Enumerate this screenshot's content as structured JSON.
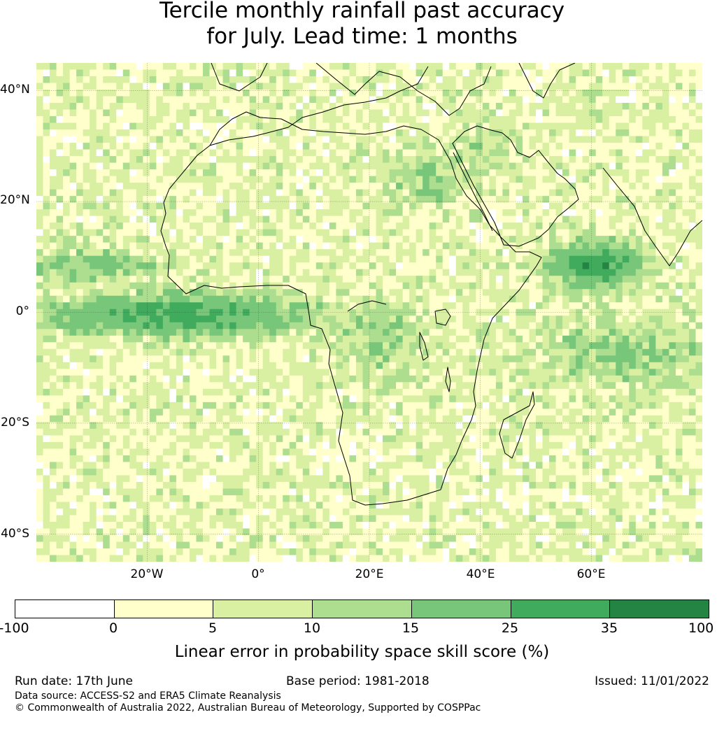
{
  "title": {
    "line1": "Tercile monthly rainfall past accuracy",
    "line2": "for July. Lead time: 1 months"
  },
  "map": {
    "lat_labels": [
      "40°N",
      "20°N",
      "0°",
      "20°S",
      "40°S"
    ],
    "lon_labels": [
      "20°W",
      "0°",
      "20°E",
      "40°E",
      "60°E"
    ],
    "lat_range": [
      -45,
      45
    ],
    "lon_range": [
      -40,
      80
    ],
    "gridlines": true,
    "coastline_color": "#000000"
  },
  "colorbar": {
    "ticks": [
      "-100",
      "0",
      "5",
      "10",
      "15",
      "25",
      "35",
      "100"
    ],
    "colors": [
      "#ffffff",
      "#ffffcc",
      "#d9f0a3",
      "#addd8e",
      "#78c679",
      "#41ab5d",
      "#238443"
    ],
    "label": "Linear error in probability space skill score (%)"
  },
  "footer": {
    "run_date": "Run date: 17th June",
    "base_period": "Base period: 1981-2018",
    "issued": "Issued: 11/01/2022",
    "data_source": "Data source: ACCESS-S2 and ERA5 Climate Reanalysis",
    "copyright": "© Commonwealth of Australia 2022, Australian Bureau of Meteorology, Supported by COSPPac"
  }
}
